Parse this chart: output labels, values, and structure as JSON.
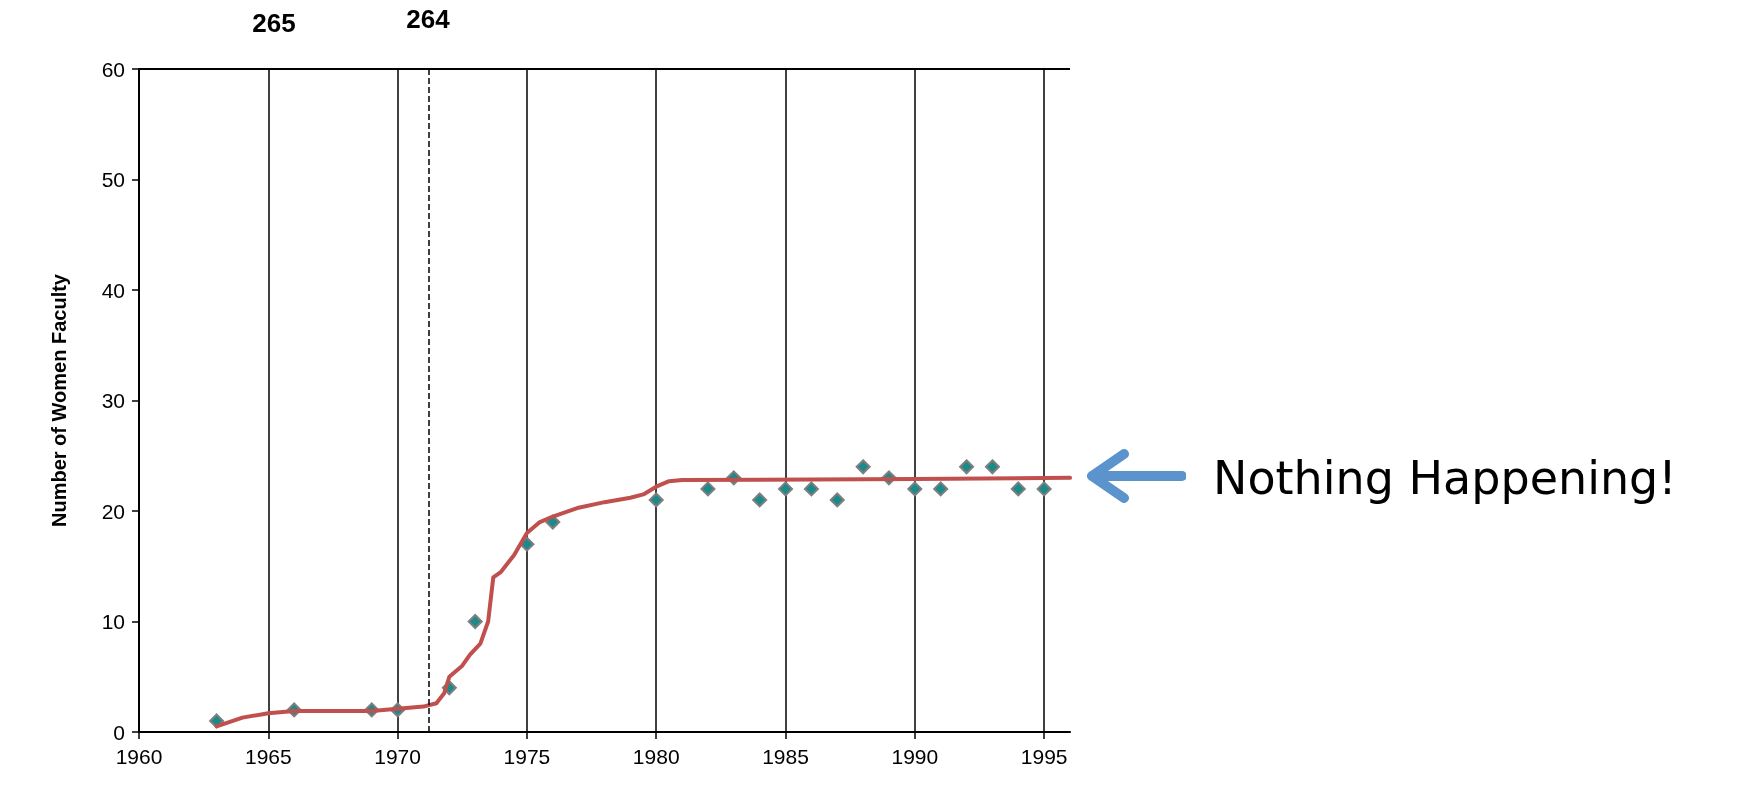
{
  "chart_data": {
    "type": "scatter",
    "ylabel": "Number of Women Faculty",
    "xlim": [
      1960,
      1996
    ],
    "xticks": [
      1960,
      1965,
      1970,
      1975,
      1980,
      1985,
      1990,
      1995
    ],
    "ylim": [
      0,
      60
    ],
    "yticks": [
      0,
      10,
      20,
      30,
      40,
      50,
      60
    ],
    "grid": "x",
    "series": [
      {
        "color": "#1a8a8a",
        "marker": "diamond",
        "x": [
          1963,
          1966,
          1969,
          1970,
          1972,
          1973,
          1975,
          1976,
          1980,
          1982,
          1983,
          1984,
          1985,
          1986,
          1987,
          1988,
          1989,
          1990,
          1991,
          1992,
          1993,
          1994,
          1995
        ],
        "values": [
          1,
          2,
          2,
          2,
          4,
          10,
          17,
          19,
          21,
          22,
          23,
          21,
          22,
          22,
          21,
          24,
          23,
          22,
          22,
          24,
          24,
          22,
          22
        ]
      },
      {
        "type": "line",
        "color": "#c0504d",
        "marker": "none",
        "x": [
          1963,
          1964,
          1965,
          1966,
          1968,
          1969,
          1970,
          1971,
          1971.5,
          1971.8,
          1972,
          1972.5,
          1972.8,
          1973.2,
          1973.5,
          1973.7,
          1974,
          1974.5,
          1975,
          1975.5,
          1976,
          1977,
          1978,
          1979,
          1979.5,
          1980,
          1980.5,
          1981,
          1990,
          1996
        ],
        "values": [
          0.5,
          1.3,
          1.7,
          1.9,
          1.9,
          1.9,
          2.1,
          2.3,
          2.6,
          3.5,
          5,
          6,
          7,
          8,
          10,
          14,
          14.5,
          16,
          18,
          19,
          19.5,
          20.3,
          20.8,
          21.2,
          21.5,
          22.2,
          22.7,
          22.8,
          22.9,
          23
        ]
      }
    ],
    "ref_lines": [
      {
        "axis": "x",
        "value": 1971.2,
        "line_style": "dashed",
        "color": "#000000"
      }
    ],
    "annotations": [
      "265",
      "264",
      "Nothing Happening!"
    ]
  }
}
